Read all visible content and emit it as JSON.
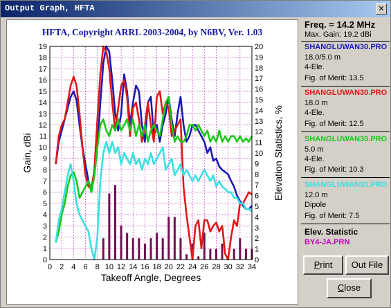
{
  "window": {
    "title": "Output Graph, HFTA",
    "close_glyph": "✕"
  },
  "graph": {
    "title": "HFTA, Copyright ARRL 2003-2004, by N6BV, Ver. 1.03",
    "title_color": "#1a1aa0"
  },
  "chart_data": {
    "type": "line",
    "title": "HFTA, Copyright ARRL 2003-2004, by N6BV, Ver. 1.03",
    "xlabel": "Takeoff Angle, Degrees",
    "ylabel": "Gain, dBi",
    "y2label": "Elevation Statistics, %",
    "xlim": [
      0,
      34
    ],
    "ylim": [
      0,
      19
    ],
    "y2lim": [
      0,
      20
    ],
    "x_ticks": [
      0,
      2,
      4,
      6,
      8,
      10,
      12,
      14,
      16,
      18,
      20,
      22,
      24,
      26,
      28,
      30,
      32,
      34
    ],
    "y_ticks": [
      0,
      1,
      2,
      3,
      4,
      5,
      6,
      7,
      8,
      9,
      10,
      11,
      12,
      13,
      14,
      15,
      16,
      17,
      18,
      19
    ],
    "y2_ticks": [
      0,
      1,
      2,
      3,
      4,
      5,
      6,
      7,
      8,
      9,
      10,
      11,
      12,
      13,
      14,
      15,
      16,
      17,
      18,
      19,
      20
    ],
    "grid": true,
    "series": [
      {
        "color": "#1a1ab4",
        "x": [
          1,
          1.5,
          2,
          2.5,
          3,
          3.5,
          4,
          4.5,
          5,
          5.5,
          6,
          6.5,
          7,
          7.5,
          8,
          8.5,
          9,
          9.5,
          10,
          10.5,
          11,
          11.5,
          12,
          12.5,
          13,
          13.5,
          14,
          14.5,
          15,
          15.5,
          16,
          16.5,
          17,
          17.5,
          18,
          18.5,
          19,
          19.5,
          20,
          20.5,
          21,
          21.5,
          22,
          22.5,
          23,
          23.5,
          24,
          24.5,
          25,
          25.5,
          26,
          26.5,
          27,
          27.5,
          28,
          28.5,
          29,
          29.5,
          30,
          30.5,
          31,
          31.5,
          32,
          32.5,
          33,
          33.5,
          34
        ],
        "y": [
          8.5,
          10.5,
          11.5,
          12.5,
          13.5,
          14.5,
          15,
          14.2,
          12,
          10,
          8.5,
          7,
          6.2,
          7.5,
          10,
          14,
          17.5,
          19,
          18.5,
          16,
          13,
          11.5,
          13,
          16.5,
          15,
          12,
          14,
          15.5,
          15,
          12,
          10.5,
          14,
          14.5,
          11,
          12,
          10.5,
          12,
          13,
          14.5,
          12.5,
          11,
          13,
          14.5,
          12,
          10.5,
          11,
          12,
          12,
          11.5,
          11,
          10.5,
          9.5,
          10,
          8.8,
          9,
          8.3,
          8,
          7.8,
          7.6,
          7,
          6.5,
          5.7,
          5.2,
          4.8,
          4.5,
          4.5,
          4.8
        ]
      },
      {
        "color": "#e01818",
        "x": [
          1,
          1.5,
          2,
          2.5,
          3,
          3.5,
          4,
          4.5,
          5,
          5.5,
          6,
          6.5,
          7,
          7.5,
          8,
          8.5,
          9,
          9.5,
          10,
          10.5,
          11,
          11.5,
          12,
          12.5,
          13,
          13.5,
          14,
          14.5,
          15,
          15.5,
          16,
          16.5,
          17,
          17.5,
          18,
          18.5,
          19,
          19.5,
          20,
          20.5,
          21,
          21.5,
          22,
          22.5,
          23,
          23.5,
          24,
          24.5,
          25,
          25.5,
          26,
          26.5,
          27,
          27.5,
          28,
          28.5,
          29,
          29.5,
          30,
          30.5,
          31,
          31.5,
          32,
          32.5,
          33,
          33.5,
          34
        ],
        "y": [
          8.5,
          11,
          12,
          12.5,
          14,
          15.5,
          16.3,
          15.5,
          13,
          10,
          7.5,
          6.5,
          6.3,
          8,
          12.5,
          16.5,
          19,
          18.5,
          17,
          14,
          11.5,
          13.5,
          15.5,
          16,
          14.5,
          11,
          13.5,
          14,
          12.5,
          10.5,
          12,
          14,
          12,
          10.5,
          14.5,
          15,
          13,
          14,
          13.5,
          11,
          11.5,
          12,
          12.5,
          6.5,
          4,
          2,
          0,
          3,
          3.5,
          1,
          3.5,
          3.5,
          2.5,
          3,
          3.3,
          2.5,
          3,
          0.5,
          0,
          2,
          3.5,
          3,
          5,
          5,
          5.5,
          6,
          5.8
        ]
      },
      {
        "color": "#18c818",
        "x": [
          1,
          1.5,
          2,
          2.5,
          3,
          3.5,
          4,
          4.5,
          5,
          5.5,
          6,
          6.5,
          7,
          7.5,
          8,
          8.5,
          9,
          9.5,
          10,
          10.5,
          11,
          11.5,
          12,
          12.5,
          13,
          13.5,
          14,
          14.5,
          15,
          15.5,
          16,
          16.5,
          17,
          17.5,
          18,
          18.5,
          19,
          19.5,
          20,
          20.5,
          21,
          21.5,
          22,
          22.5,
          23,
          23.5,
          24,
          24.5,
          25,
          25.5,
          26,
          26.5,
          27,
          27.5,
          28,
          28.5,
          29,
          29.5,
          30,
          30.5,
          31,
          31.5,
          32,
          32.5,
          33,
          33.5,
          34
        ],
        "y": [
          1.5,
          2.5,
          4,
          5,
          6.5,
          7.5,
          7.8,
          7,
          5.5,
          6,
          6.5,
          7,
          6,
          7.5,
          10,
          12,
          12.5,
          11.5,
          11,
          12,
          11.5,
          12.5,
          11.5,
          12,
          12.5,
          11.5,
          12.5,
          11,
          12,
          11,
          12,
          10.5,
          11.5,
          12,
          11.5,
          11,
          12.5,
          14,
          14.5,
          12,
          10.5,
          11,
          10.5,
          10.5,
          11,
          12,
          12,
          11.5,
          12,
          11.5,
          11,
          11.5,
          10.5,
          11,
          10.5,
          11.5,
          10.5,
          11,
          10.5,
          11,
          11,
          10.5,
          11,
          10.5,
          10.8,
          10.5,
          11
        ]
      },
      {
        "color": "#38e0e0",
        "x": [
          1,
          1.5,
          2,
          2.5,
          3,
          3.5,
          4,
          4.5,
          5,
          5.5,
          6,
          6.5,
          7,
          7.5,
          8,
          8.5,
          9,
          9.5,
          10,
          10.5,
          11,
          11.5,
          12,
          12.5,
          13,
          13.5,
          14,
          14.5,
          15,
          15.5,
          16,
          16.5,
          17,
          17.5,
          18,
          18.5,
          19,
          19.5,
          20,
          20.5,
          21,
          21.5,
          22,
          22.5,
          23,
          23.5,
          24,
          24.5,
          25,
          25.5,
          26,
          26.5,
          27,
          27.5,
          28,
          28.5,
          29,
          29.5,
          30,
          30.5,
          31,
          31.5,
          32,
          32.5,
          33,
          33.5,
          34
        ],
        "y": [
          1.5,
          3.5,
          4.5,
          6,
          7.5,
          8.5,
          7,
          5,
          4,
          3.5,
          3,
          2.5,
          1,
          0,
          2,
          7,
          9.5,
          10.5,
          9.5,
          10.5,
          9.5,
          10,
          8.5,
          9.5,
          9,
          8.5,
          9.5,
          8.5,
          9,
          8,
          9,
          8.5,
          9.5,
          8.5,
          9,
          9.5,
          10,
          8,
          8.5,
          9,
          7.5,
          8,
          8.5,
          7.5,
          8,
          7.5,
          7,
          7.5,
          7,
          7.5,
          8,
          7.5,
          7,
          7.5,
          6.5,
          7,
          6.5,
          6.3,
          6,
          6,
          5.5,
          5.5,
          5,
          5,
          4.5,
          4.5,
          4.3
        ]
      }
    ],
    "bars": {
      "color": "#701050",
      "x": [
        9,
        10,
        11,
        12,
        13,
        14,
        15,
        16,
        17,
        18,
        19,
        20,
        21,
        22,
        23,
        24,
        25,
        26,
        27,
        28,
        29,
        30,
        31,
        32,
        33,
        34
      ],
      "values": [
        2,
        6.2,
        7,
        3.2,
        2.5,
        2,
        2,
        1.5,
        2,
        2.5,
        2,
        4,
        4,
        2,
        0.5,
        1.5,
        0.3,
        2.5,
        1,
        1,
        1.5,
        0.3,
        1,
        2,
        1,
        1
      ]
    }
  },
  "panel": {
    "freq": "Freq. = 14.2 MHz",
    "max_gain": "Max. Gain: 19.2 dBi",
    "antennas": [
      {
        "name": "SHANGLUWAN30.PRO",
        "color": "#1a1ab4",
        "line1": "18.0/5.0 m",
        "line2": "4-Ele.",
        "merit": "Fig. of Merit:  13.5"
      },
      {
        "name": "SHANGLUWAN30.PRO",
        "color": "#e01818",
        "line1": "18.0 m",
        "line2": "4-Ele.",
        "merit": "Fig. of Merit:  12.5"
      },
      {
        "name": "SHANGLUWAN30.PRO",
        "color": "#18c818",
        "line1": "5.0 m",
        "line2": "4-Ele.",
        "merit": "Fig. of Merit:  10.3"
      },
      {
        "name": "SHANGLUWAN30.PRO",
        "color": "#38e0e0",
        "line1": "12.0 m",
        "line2": "Dipole",
        "merit": "Fig. of Merit:  7.5"
      }
    ],
    "elev_title": "Elev. Statistic",
    "elev_file": "BY4-JA.PRN"
  },
  "buttons": {
    "print": {
      "first": "P",
      "rest": "rint"
    },
    "outfile": "Out File",
    "close": {
      "first": "C",
      "rest": "lose"
    }
  }
}
